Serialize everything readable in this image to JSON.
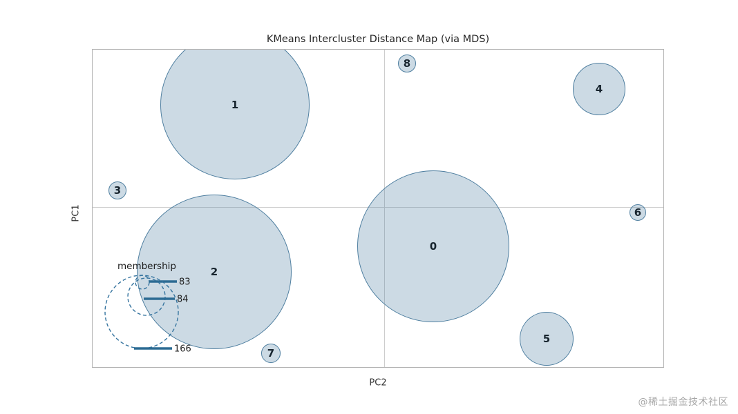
{
  "watermark": "@稀土掘金技术社区",
  "chart_data": {
    "type": "scatter",
    "variant": "intercluster-distance-bubble-map",
    "title": "KMeans Intercluster Distance Map (via MDS)",
    "xlabel": "PC2",
    "ylabel": "PC1",
    "x_ticks": [],
    "y_ticks": [],
    "grid": "center crosshair only",
    "crosshair": {
      "x_frac": 0.511,
      "y_frac": 0.496
    },
    "colors": {
      "bubble_fill": "rgba(96, 141, 171, 0.32)",
      "bubble_stroke": "#4f7fa0",
      "legend_circle_stroke": "#35749f",
      "legend_marker": "#2c6b93"
    },
    "clusters": [
      {
        "label": "0",
        "x_frac": 0.597,
        "y_frac": 0.62,
        "radius_px": 110
      },
      {
        "label": "1",
        "x_frac": 0.249,
        "y_frac": 0.174,
        "radius_px": 108
      },
      {
        "label": "2",
        "x_frac": 0.213,
        "y_frac": 0.7,
        "radius_px": 112
      },
      {
        "label": "3",
        "x_frac": 0.044,
        "y_frac": 0.443,
        "radius_px": 13
      },
      {
        "label": "4",
        "x_frac": 0.887,
        "y_frac": 0.124,
        "radius_px": 38
      },
      {
        "label": "5",
        "x_frac": 0.795,
        "y_frac": 0.911,
        "radius_px": 39
      },
      {
        "label": "6",
        "x_frac": 0.955,
        "y_frac": 0.513,
        "radius_px": 12
      },
      {
        "label": "7",
        "x_frac": 0.312,
        "y_frac": 0.957,
        "radius_px": 14
      },
      {
        "label": "8",
        "x_frac": 0.551,
        "y_frac": 0.043,
        "radius_px": 13
      }
    ],
    "membership_legend": {
      "title": "membership",
      "entries": [
        {
          "label": "83",
          "radius_px": 10
        },
        {
          "label": "84",
          "radius_px": 27
        },
        {
          "label": "166",
          "radius_px": 53
        }
      ]
    }
  }
}
